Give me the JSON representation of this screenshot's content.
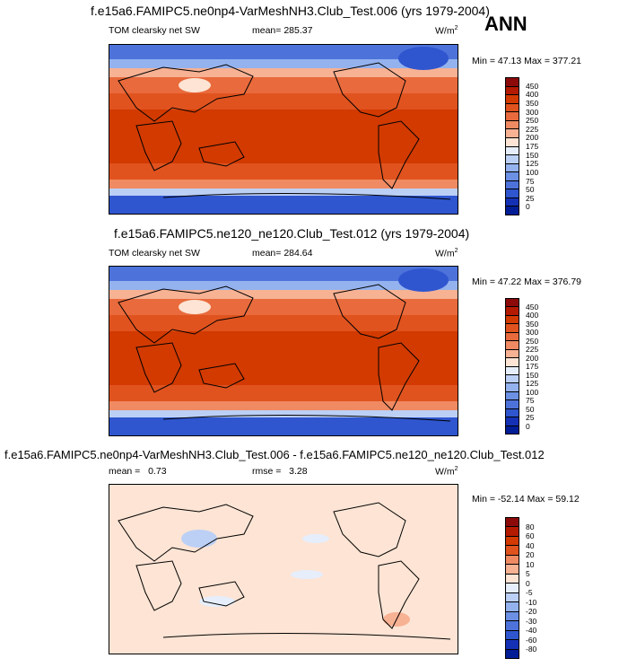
{
  "ann_label": "ANN",
  "panels": [
    {
      "title": "f.e15a6.FAMIPC5.ne0np4-VarMeshNH3.Club_Test.006 (yrs 1979-2004)",
      "variable": "TOM clearsky net SW",
      "stat_label": "mean=",
      "stat_value": "285.37",
      "units": "W/m",
      "units_exp": "2",
      "minmax": "Min =  47.13 Max = 377.21",
      "colorbar": {
        "labels": [
          "450",
          "400",
          "350",
          "300",
          "250",
          "225",
          "200",
          "175",
          "150",
          "125",
          "100",
          "75",
          "50",
          "25",
          "0"
        ],
        "colors": [
          "#8c0a0a",
          "#b31a00",
          "#d23a00",
          "#e0531f",
          "#e96a3c",
          "#f08a62",
          "#f7b193",
          "#fde4d4",
          "#e6eefc",
          "#bcd0f6",
          "#94b2ee",
          "#6c90e4",
          "#4d73db",
          "#2f56cf",
          "#1431b6",
          "#001d96"
        ]
      }
    },
    {
      "title": "f.e15a6.FAMIPC5.ne120_ne120.Club_Test.012 (yrs 1979-2004)",
      "variable": "TOM clearsky net SW",
      "stat_label": "mean=",
      "stat_value": "284.64",
      "units": "W/m",
      "units_exp": "2",
      "minmax": "Min =  47.22 Max = 376.79",
      "colorbar": {
        "labels": [
          "450",
          "400",
          "350",
          "300",
          "250",
          "225",
          "200",
          "175",
          "150",
          "125",
          "100",
          "75",
          "50",
          "25",
          "0"
        ],
        "colors": [
          "#8c0a0a",
          "#b31a00",
          "#d23a00",
          "#e0531f",
          "#e96a3c",
          "#f08a62",
          "#f7b193",
          "#fde4d4",
          "#e6eefc",
          "#bcd0f6",
          "#94b2ee",
          "#6c90e4",
          "#4d73db",
          "#2f56cf",
          "#1431b6",
          "#001d96"
        ]
      }
    },
    {
      "title": "f.e15a6.FAMIPC5.ne0np4-VarMeshNH3.Club_Test.006 - f.e15a6.FAMIPC5.ne120_ne120.Club_Test.012",
      "mean_label": "mean =",
      "mean_value": "0.73",
      "rmse_label": "rmse =",
      "rmse_value": "3.28",
      "units": "W/m",
      "units_exp": "2",
      "minmax": "Min = -52.14 Max =  59.12",
      "colorbar": {
        "labels": [
          "80",
          "60",
          "40",
          "20",
          "10",
          "5",
          "0",
          "-5",
          "-10",
          "-20",
          "-30",
          "-40",
          "-60",
          "-80"
        ],
        "colors": [
          "#8c0a0a",
          "#b31a00",
          "#d23a00",
          "#e0531f",
          "#f08a62",
          "#f7b193",
          "#fde4d4",
          "#e6eefc",
          "#bcd0f6",
          "#94b2ee",
          "#6c90e4",
          "#4d73db",
          "#2f56cf",
          "#1431b6",
          "#001d96"
        ]
      }
    }
  ]
}
